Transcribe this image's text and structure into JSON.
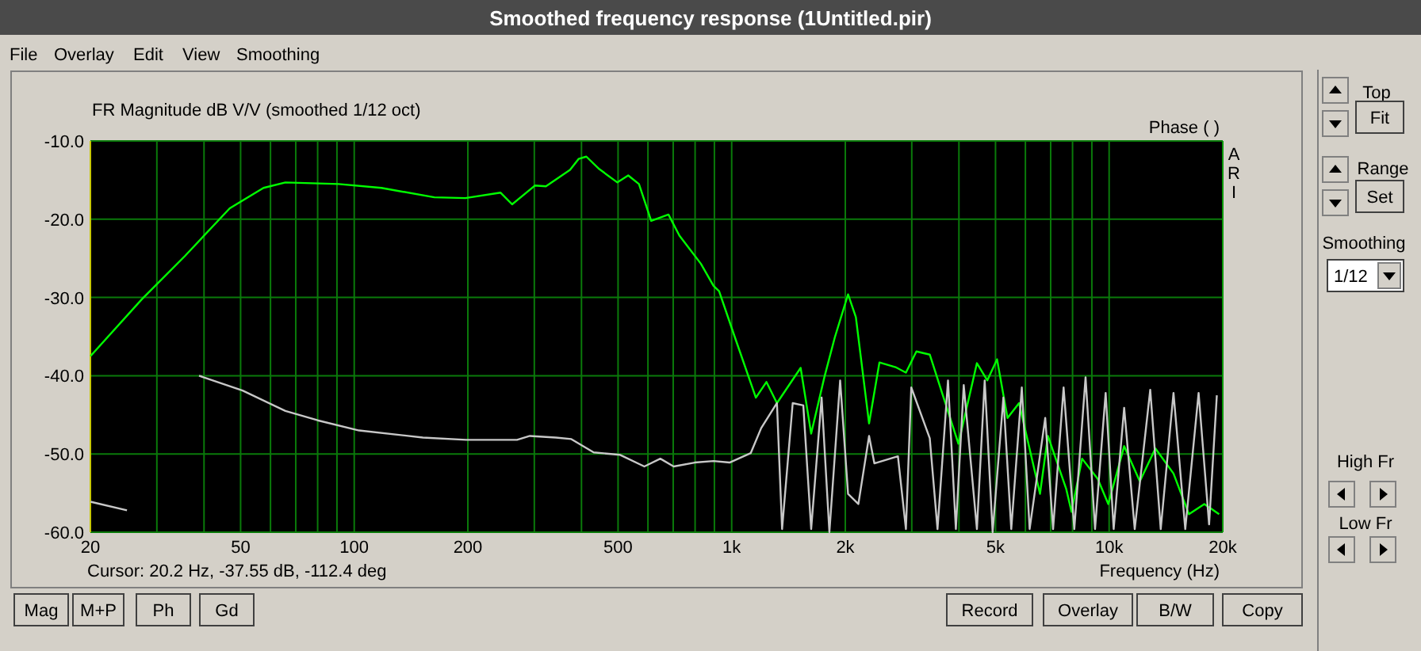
{
  "chart_data": {
    "type": "line",
    "title": "Smoothed frequency response (1Untitled.pir)",
    "ylabel": "FR Magnitude dB V/V (smoothed 1/12 oct)",
    "y2label": "Phase ( )",
    "xlabel": "Frequency (Hz)",
    "log": "x",
    "grid": true,
    "marker": "none",
    "line_style": "solid",
    "xlim": [
      20,
      20000
    ],
    "ylim": [
      -60,
      -10
    ],
    "xticks": [
      20,
      {
        "value": 30,
        "label": null
      },
      {
        "value": 40,
        "label": null
      },
      50,
      {
        "value": 60,
        "label": null
      },
      {
        "value": 70,
        "label": null
      },
      {
        "value": 80,
        "label": null
      },
      {
        "value": 90,
        "label": null
      },
      100,
      200,
      {
        "value": 300,
        "label": null
      },
      {
        "value": 400,
        "label": null
      },
      500,
      {
        "value": 600,
        "label": null
      },
      {
        "value": 700,
        "label": null
      },
      {
        "value": 800,
        "label": null
      },
      {
        "value": 900,
        "label": null
      },
      {
        "value": 1000,
        "label": "1k"
      },
      {
        "value": 2000,
        "label": "2k"
      },
      {
        "value": 3000,
        "label": null
      },
      {
        "value": 4000,
        "label": null
      },
      {
        "value": 5000,
        "label": "5k"
      },
      {
        "value": 6000,
        "label": null
      },
      {
        "value": 7000,
        "label": null
      },
      {
        "value": 8000,
        "label": null
      },
      {
        "value": 9000,
        "label": null
      },
      {
        "value": 10000,
        "label": "10k"
      },
      {
        "value": 20000,
        "label": "20k"
      }
    ],
    "yticks": [
      {
        "value": -60,
        "label": "-60.0"
      },
      {
        "value": -50,
        "label": "-50.0"
      },
      {
        "value": -40,
        "label": "-40.0"
      },
      {
        "value": -30,
        "label": "-30.0"
      },
      {
        "value": -20,
        "label": "-20.0"
      },
      {
        "value": -10,
        "label": "-10.0"
      }
    ],
    "series": [
      {
        "color": "#00ff00",
        "x": [
          20,
          27.4,
          35.6,
          46.8,
          57.5,
          65.7,
          91,
          118,
          163,
          197,
          244,
          262,
          301,
          322,
          373,
          393,
          412,
          446,
          498,
          532,
          568,
          612,
          680,
          727,
          829,
          895,
          926,
          1020,
          1123,
          1159,
          1236,
          1318,
          1523,
          1624,
          1760,
          1876,
          2034,
          2133,
          2312,
          2463,
          2716,
          2895,
          3086,
          3348,
          3626,
          3988,
          4464,
          4757,
          5047,
          5380,
          5773,
          6559,
          6883,
          7700,
          7950,
          8480,
          9330,
          9950,
          10960,
          12060,
          13260,
          14810,
          16270,
          17870,
          19560
        ],
        "values": [
          -37.5,
          -30.2,
          -24.7,
          -18.6,
          -16,
          -15.3,
          -15.5,
          -16,
          -17.2,
          -17.3,
          -16.6,
          -18.1,
          -15.7,
          -15.8,
          -13.7,
          -12.3,
          -12,
          -13.6,
          -15.3,
          -14.4,
          -15.5,
          -20.2,
          -19.4,
          -22.1,
          -25.7,
          -28.5,
          -29.2,
          -35.1,
          -40.9,
          -42.8,
          -40.8,
          -43.5,
          -39,
          -47.4,
          -40.2,
          -35.1,
          -29.6,
          -32.5,
          -46.1,
          -38.3,
          -38.9,
          -39.6,
          -36.9,
          -37.3,
          -42.5,
          -48.7,
          -38.4,
          -40.6,
          -37.9,
          -45.4,
          -43.5,
          -55.1,
          -47.7,
          -54.5,
          -57.4,
          -50.6,
          -53.2,
          -56.4,
          -49,
          -53.5,
          -49.3,
          -52.5,
          -57.7,
          -56.4,
          -57.7
        ]
      },
      {
        "color": "#c8c8c8",
        "x": [
          20,
          25,
          37.5,
          38.8,
          50.6,
          65.7,
          80,
          103,
          152,
          198,
          270,
          292,
          342,
          376,
          431,
          505,
          587,
          647,
          702,
          798,
          895,
          987,
          1123,
          1197,
          1318,
          1360,
          1451,
          1548,
          1624,
          1731,
          1815,
          1938,
          2034,
          2166,
          2312,
          2388,
          2757,
          2895,
          2991,
          3348,
          3510,
          3742,
          3926,
          4119,
          4464,
          4681,
          4913,
          5246,
          5504,
          5870,
          6157,
          6772,
          7104,
          7575,
          8085,
          8661,
          9176,
          9790,
          10280,
          10960,
          11690,
          12850,
          13700,
          14810,
          15910,
          17260,
          18400,
          19290
        ],
        "values": [
          -56.1,
          -57.2,
          null,
          -40,
          -41.9,
          -44.5,
          -45.7,
          -47,
          -47.9,
          -48.2,
          -48.2,
          -47.7,
          -47.9,
          -48.1,
          -49.8,
          -50.1,
          -51.6,
          -50.6,
          -51.6,
          -51.1,
          -50.9,
          -51.1,
          -49.9,
          -46.7,
          -43.5,
          -59.6,
          -43.5,
          -43.8,
          -59.6,
          -42.8,
          -60,
          -40.6,
          -55.1,
          -56.4,
          -47.7,
          -51.2,
          -50.3,
          -59.6,
          -41.5,
          -48,
          -59.6,
          -40.6,
          -59.6,
          -41.2,
          -59.6,
          -40.6,
          -60,
          -42.8,
          -59.6,
          -41.5,
          -59.6,
          -45.4,
          -59.6,
          -41.5,
          -59.6,
          -40.2,
          -59.6,
          -42.2,
          -59.6,
          -44.1,
          -59.6,
          -41.8,
          -59.6,
          -42.2,
          -59.6,
          -42.2,
          -59,
          -42.5
        ]
      }
    ],
    "annotations": [
      "File",
      "Overlay",
      "Edit",
      "View",
      "Smoothing",
      "Cursor: 20.2 Hz, -37.55 dB, -112.4 deg",
      "A",
      "R",
      "I",
      "Top",
      "Fit",
      "Range",
      "Set",
      "Smoothing",
      "1/12",
      "High Fr",
      "Low Fr",
      "Mag",
      "M+P",
      "Ph",
      "Gd",
      "Record",
      "Overlay",
      "B/W",
      "Copy"
    ]
  }
}
